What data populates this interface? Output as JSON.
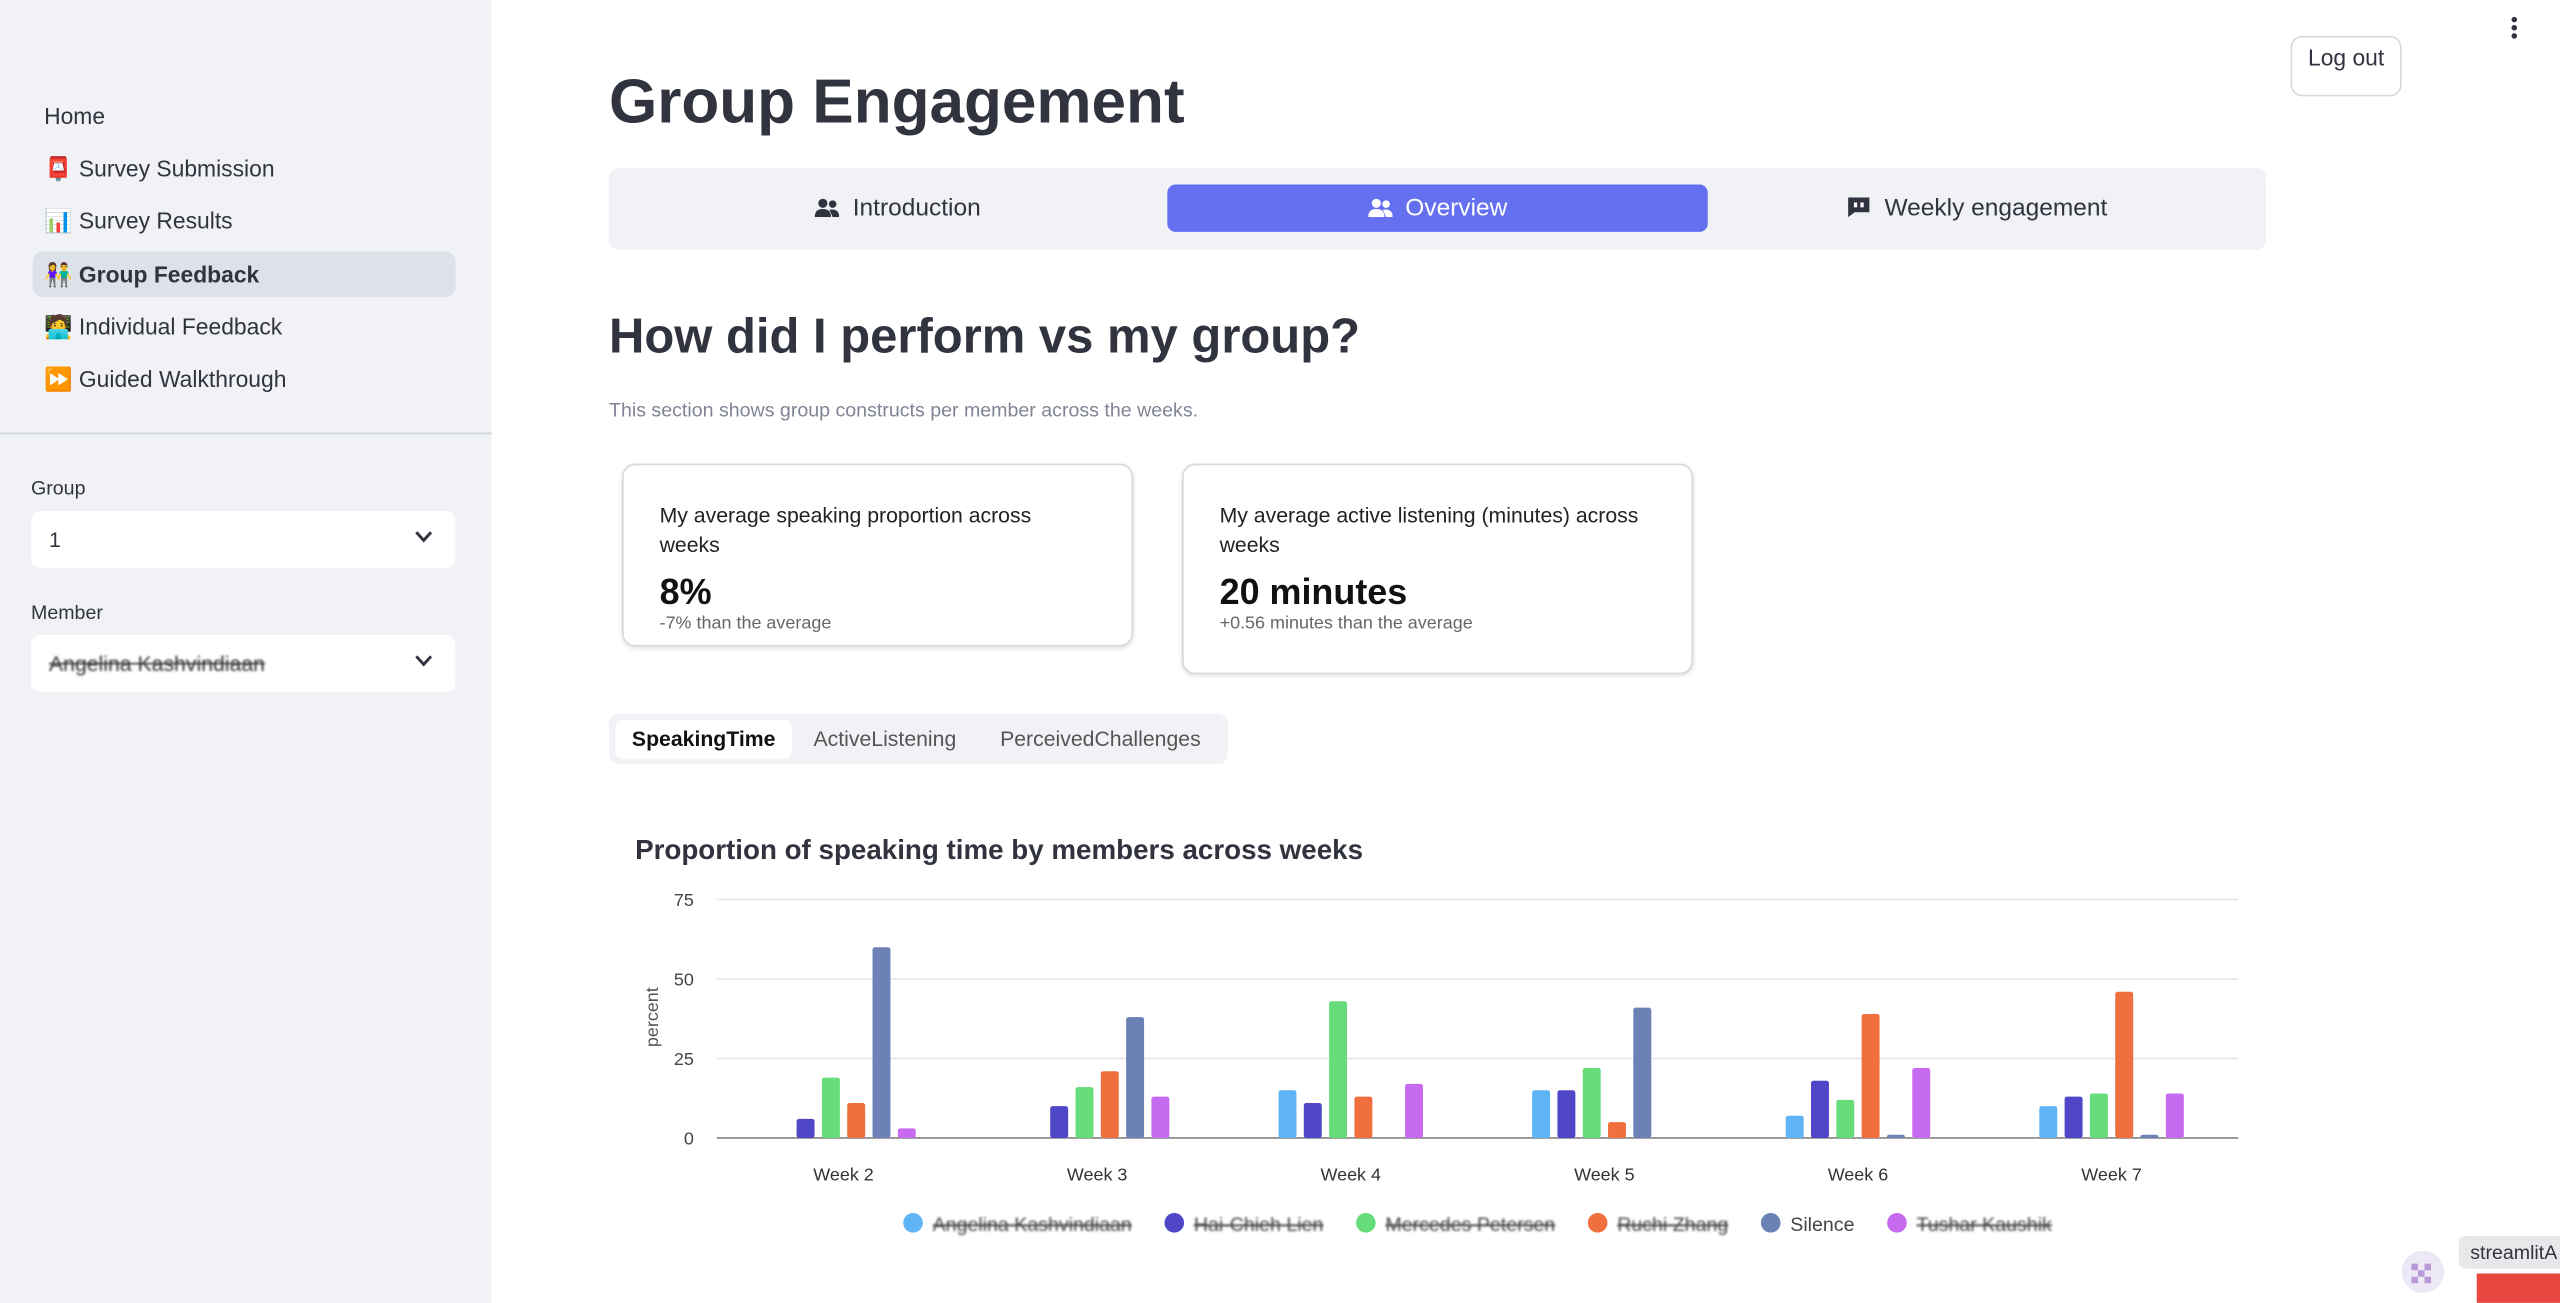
{
  "sidebar": {
    "nav": [
      {
        "icon": "",
        "label": "Home"
      },
      {
        "icon": "📮",
        "label": "Survey Submission"
      },
      {
        "icon": "📊",
        "label": "Survey Results"
      },
      {
        "icon": "👫",
        "label": "Group Feedback"
      },
      {
        "icon": "🧑‍💻",
        "label": "Individual Feedback"
      },
      {
        "icon": "⏩",
        "label": "Guided Walkthrough"
      }
    ],
    "group_label": "Group",
    "group_value": "1",
    "member_label": "Member",
    "member_value": "Angelina Kashvindiaan"
  },
  "header": {
    "logout": "Log out",
    "title": "Group Engagement"
  },
  "tabs": [
    "Introduction",
    "Overview",
    "Weekly engagement"
  ],
  "section": {
    "title": "How did I perform vs my group?",
    "description": "This section shows group constructs per member across the weeks."
  },
  "metrics": [
    {
      "label": "My average speaking proportion across weeks",
      "value": "8%",
      "delta": "-7% than the average"
    },
    {
      "label": "My average active listening (minutes) across weeks",
      "value": "20 minutes",
      "delta": "+0.56 minutes than the average"
    }
  ],
  "subtabs": [
    "SpeakingTime",
    "ActiveListening",
    "PerceivedChallenges"
  ],
  "badge": "streamlitA",
  "chart_data": {
    "type": "bar",
    "title": "Proportion of speaking time by members across weeks",
    "y_label": "percent",
    "categories": [
      "Week 2",
      "Week 3",
      "Week 4",
      "Week 5",
      "Week 6",
      "Week 7"
    ],
    "series": [
      {
        "name": "Angelina Kashvindiaan",
        "color": "#5fb4f5",
        "values": [
          null,
          null,
          15,
          15,
          7,
          10
        ]
      },
      {
        "name": "Hai-Chieh Lien",
        "color": "#4f46c8",
        "values": [
          6,
          10,
          11,
          15,
          18,
          13
        ]
      },
      {
        "name": "Mercedes Petersen",
        "color": "#66dc7a",
        "values": [
          19,
          16,
          43,
          22,
          12,
          14
        ]
      },
      {
        "name": "Ruchi Zhang",
        "color": "#f06f3e",
        "values": [
          11,
          21,
          13,
          5,
          39,
          46
        ]
      },
      {
        "name": "Silence",
        "color": "#6c81b5",
        "values": [
          60,
          38,
          null,
          41,
          1,
          1
        ]
      },
      {
        "name": "Tushar Kaushik",
        "color": "#c66bf0",
        "values": [
          3,
          13,
          17,
          null,
          22,
          14
        ]
      }
    ],
    "ylim": [
      0,
      75
    ],
    "yticks": [
      0,
      25,
      50,
      75
    ],
    "grid": true
  }
}
